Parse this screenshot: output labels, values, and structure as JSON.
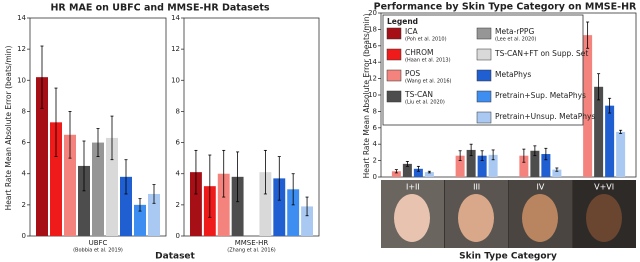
{
  "chart_data": [
    {
      "type": "bar",
      "title": "HR MAE on UBFC and MMSE-HR Datasets",
      "ylabel": "Heart Rate Mean Absolute Error (beats/min)",
      "xlabel": "Dataset",
      "categories": [
        "UBFC",
        "MMSE-HR"
      ],
      "category_notes": [
        "(Bobbia et al. 2019)",
        "(Zhang et al. 2016)"
      ],
      "ylim": [
        0,
        14
      ],
      "yticks": [
        0,
        2,
        4,
        6,
        8,
        10,
        12,
        14
      ],
      "series": [
        {
          "color": "#a50f15",
          "values": [
            10.2,
            4.1
          ],
          "errors": [
            2.0,
            1.4
          ]
        },
        {
          "color": "#ef1b1b",
          "values": [
            7.3,
            3.2
          ],
          "errors": [
            2.2,
            2.0
          ]
        },
        {
          "color": "#f4837d",
          "values": [
            6.5,
            4.0
          ],
          "errors": [
            1.5,
            1.5
          ]
        },
        {
          "color": "#4d4d4d",
          "values": [
            4.5,
            3.8
          ],
          "errors": [
            1.6,
            1.6
          ]
        },
        {
          "color": "#969696",
          "values": [
            6.0,
            null
          ],
          "errors": [
            0.9,
            null
          ]
        },
        {
          "color": "#d9d9d9",
          "values": [
            6.3,
            4.1
          ],
          "errors": [
            1.4,
            1.4
          ]
        },
        {
          "color": "#1f5fd1",
          "values": [
            3.8,
            3.7
          ],
          "errors": [
            1.1,
            1.4
          ]
        },
        {
          "color": "#3d8ef0",
          "values": [
            2.0,
            3.0
          ],
          "errors": [
            0.4,
            1.0
          ]
        },
        {
          "color": "#a9c9f2",
          "values": [
            2.7,
            1.9
          ],
          "errors": [
            0.6,
            0.6
          ]
        }
      ]
    },
    {
      "type": "bar",
      "title": "Performance by Skin Type Category on MMSE-HR",
      "ylabel": "Heart Rate Mean Absolute Error (beats/min)",
      "xlabel": "Skin Type Category",
      "categories": [
        "I+II",
        "III",
        "IV",
        "V+VI"
      ],
      "ylim": [
        0,
        20
      ],
      "yticks": [
        0,
        2,
        4,
        6,
        8,
        10,
        12,
        14,
        16,
        18,
        20
      ],
      "legend_title": "Legend",
      "series": [
        {
          "name": "ICA",
          "citation": "(Poh et al. 2010)",
          "color": "#a50f15",
          "values": [
            null,
            null,
            null,
            null
          ],
          "errors": [
            null,
            null,
            null,
            null
          ]
        },
        {
          "name": "CHROM",
          "citation": "(Haan et al. 2013)",
          "color": "#ef1b1b",
          "values": [
            null,
            null,
            null,
            null
          ],
          "errors": [
            null,
            null,
            null,
            null
          ]
        },
        {
          "name": "POS",
          "citation": "(Wang et al. 2016)",
          "color": "#f4837d",
          "values": [
            0.7,
            2.6,
            2.6,
            17.3
          ],
          "errors": [
            0.2,
            0.6,
            0.8,
            1.6
          ]
        },
        {
          "name": "TS-CAN",
          "citation": "(Liu et al. 2020)",
          "color": "#4d4d4d",
          "values": [
            1.6,
            3.3,
            3.2,
            11.0
          ],
          "errors": [
            0.3,
            0.7,
            0.6,
            1.6
          ]
        },
        {
          "name": "Meta-rPPG",
          "citation": "(Lee et al. 2020)",
          "color": "#969696",
          "values": [
            null,
            null,
            null,
            null
          ],
          "errors": [
            null,
            null,
            null,
            null
          ]
        },
        {
          "name": "TS-CAN+FT on Supp. Set",
          "color": "#d9d9d9",
          "values": [
            null,
            null,
            null,
            null
          ],
          "errors": [
            null,
            null,
            null,
            null
          ]
        },
        {
          "name": "MetaPhys",
          "color": "#1f5fd1",
          "values": [
            1.0,
            2.6,
            2.8,
            8.7
          ],
          "errors": [
            0.3,
            0.6,
            0.7,
            0.9
          ]
        },
        {
          "name": "Pretrain+Sup. MetaPhys",
          "color": "#3d8ef0",
          "values": [
            null,
            null,
            null,
            null
          ],
          "errors": [
            null,
            null,
            null,
            null
          ]
        },
        {
          "name": "Pretrain+Unsup. MetaPhys",
          "color": "#a9c9f2",
          "values": [
            0.6,
            2.7,
            0.9,
            5.5
          ],
          "errors": [
            0.1,
            0.6,
            0.2,
            0.2
          ]
        }
      ]
    }
  ]
}
